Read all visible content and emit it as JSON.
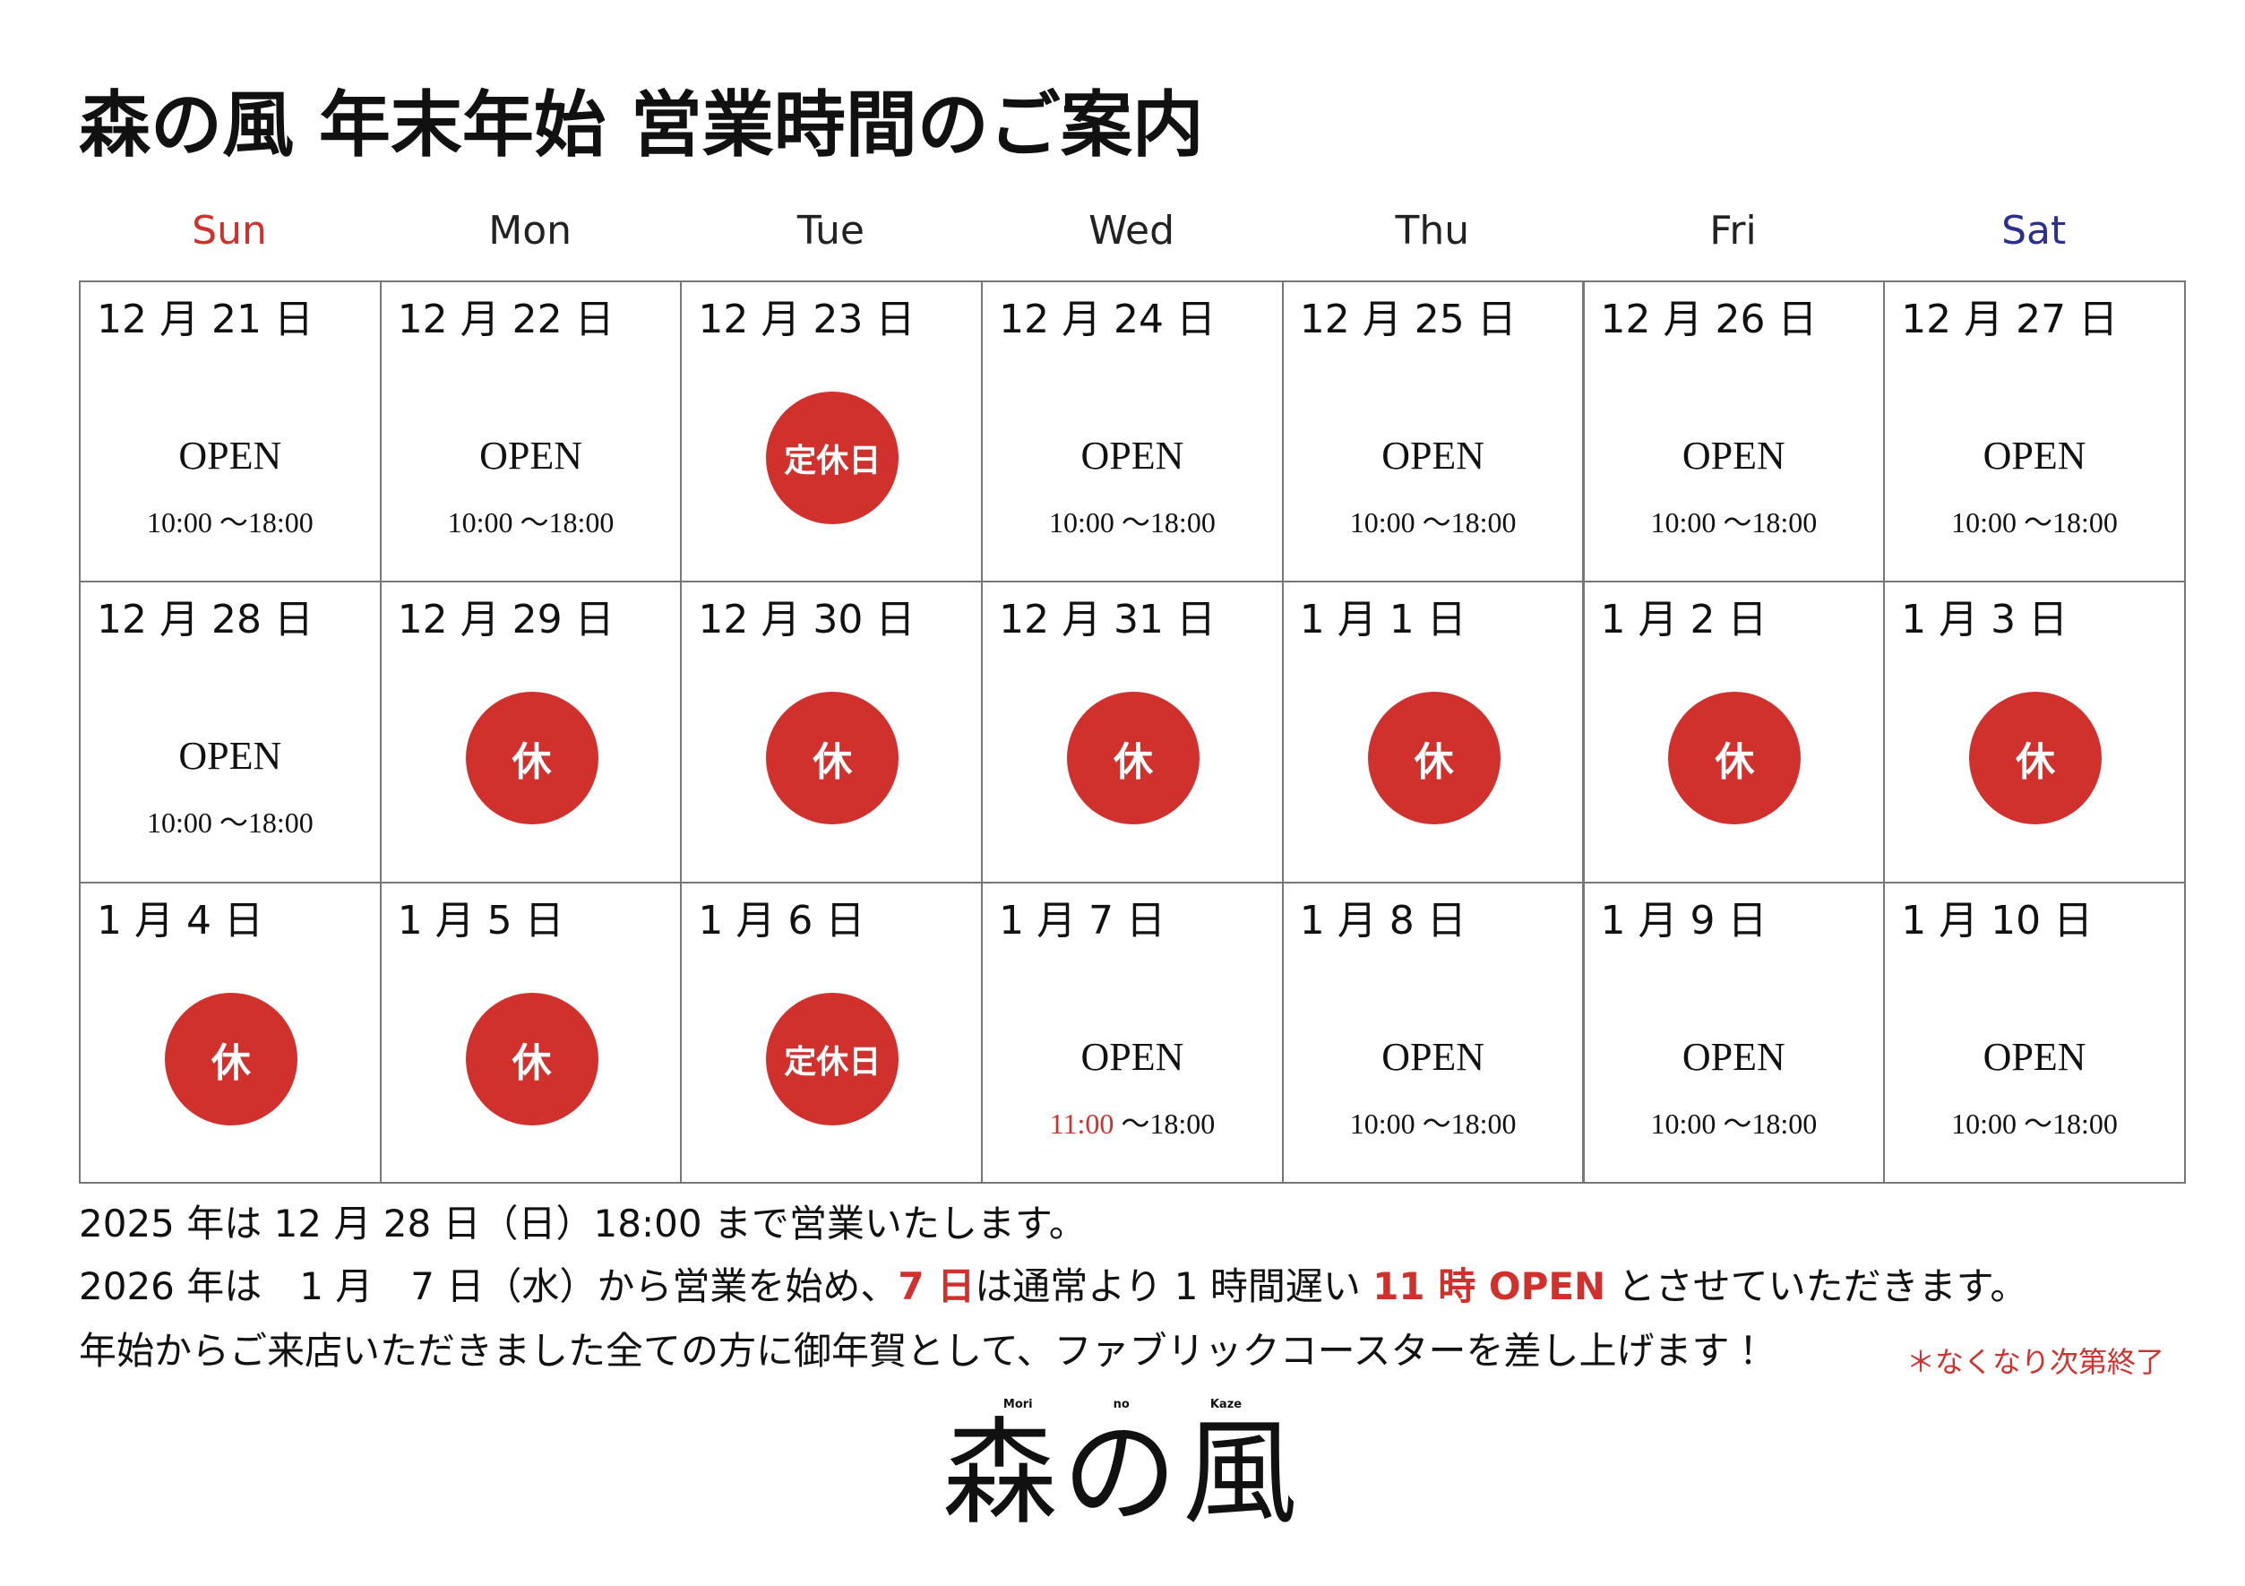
{
  "header": {
    "title": "森の風 年末年始 営業時間のご案内"
  },
  "weekdays": [
    {
      "label": "Sun",
      "color": "#d0312d"
    },
    {
      "label": "Mon",
      "color": "#222222"
    },
    {
      "label": "Tue",
      "color": "#222222"
    },
    {
      "label": "Wed",
      "color": "#222222"
    },
    {
      "label": "Thu",
      "color": "#222222"
    },
    {
      "label": "Fri",
      "color": "#222222"
    },
    {
      "label": "Sat",
      "color": "#2b2f8f"
    }
  ],
  "weeks": [
    [
      {
        "date": "12 月 21 日",
        "status": "OPEN",
        "hours_open": "10:00",
        "hours_close": "～18:00"
      },
      {
        "date": "12 月 22 日",
        "status": "OPEN",
        "hours_open": "10:00",
        "hours_close": "～18:00"
      },
      {
        "date": "12 月 23 日",
        "status": "定休日"
      },
      {
        "date": "12 月 24 日",
        "status": "OPEN",
        "hours_open": "10:00",
        "hours_close": "～18:00"
      },
      {
        "date": "12 月 25 日",
        "status": "OPEN",
        "hours_open": "10:00",
        "hours_close": "～18:00"
      },
      {
        "date": "12 月 26 日",
        "status": "OPEN",
        "hours_open": "10:00",
        "hours_close": "～18:00"
      },
      {
        "date": "12 月 27 日",
        "status": "OPEN",
        "hours_open": "10:00",
        "hours_close": "～18:00"
      }
    ],
    [
      {
        "date": "12 月 28 日",
        "status": "OPEN",
        "hours_open": "10:00",
        "hours_close": "～18:00"
      },
      {
        "date": "12 月 29 日",
        "status": "休"
      },
      {
        "date": "12 月 30 日",
        "status": "休"
      },
      {
        "date": "12 月 31 日",
        "status": "休"
      },
      {
        "date": "1 月 1 日",
        "status": "休"
      },
      {
        "date": "1 月 2 日",
        "status": "休"
      },
      {
        "date": "1 月 3 日",
        "status": "休"
      }
    ],
    [
      {
        "date": "1 月 4 日",
        "status": "休"
      },
      {
        "date": "1 月 5 日",
        "status": "休"
      },
      {
        "date": "1 月 6 日",
        "status": "定休日"
      },
      {
        "date": "1 月 7 日",
        "status": "OPEN",
        "hours_open": "11:00",
        "hours_open_color": "#d0312d",
        "hours_close": "～18:00"
      },
      {
        "date": "1 月 8 日",
        "status": "OPEN",
        "hours_open": "10:00",
        "hours_close": "～18:00"
      },
      {
        "date": "1 月 9 日",
        "status": "OPEN",
        "hours_open": "10:00",
        "hours_close": "～18:00"
      },
      {
        "date": "1 月 10 日",
        "status": "OPEN",
        "hours_open": "10:00",
        "hours_close": "～18:00"
      }
    ]
  ],
  "notes": [
    {
      "segments": [
        {
          "text": "2025 年は 12 月 28 日（日）18:00 まで営業いたします。"
        }
      ]
    },
    {
      "segments": [
        {
          "text": "2026 年は　1 月　7 日（水）から営業を始め、"
        },
        {
          "text": "7 日",
          "color": "#d0312d"
        },
        {
          "text": "は通常より 1 時間遅い "
        },
        {
          "text": "11 時 OPEN",
          "color": "#d0312d"
        },
        {
          "text": " とさせていただきます。"
        }
      ]
    },
    {
      "segments": [
        {
          "text": "年始からご来店いただきました全ての方に御年賀として、ファブリックコースターを差し上げます！"
        }
      ],
      "aside": {
        "text": "＊なくなり次第終了",
        "color": "#d0312d"
      }
    }
  ],
  "logo": {
    "name": "森の風",
    "romaji": [
      "Mori",
      "no",
      "Kaze"
    ]
  }
}
